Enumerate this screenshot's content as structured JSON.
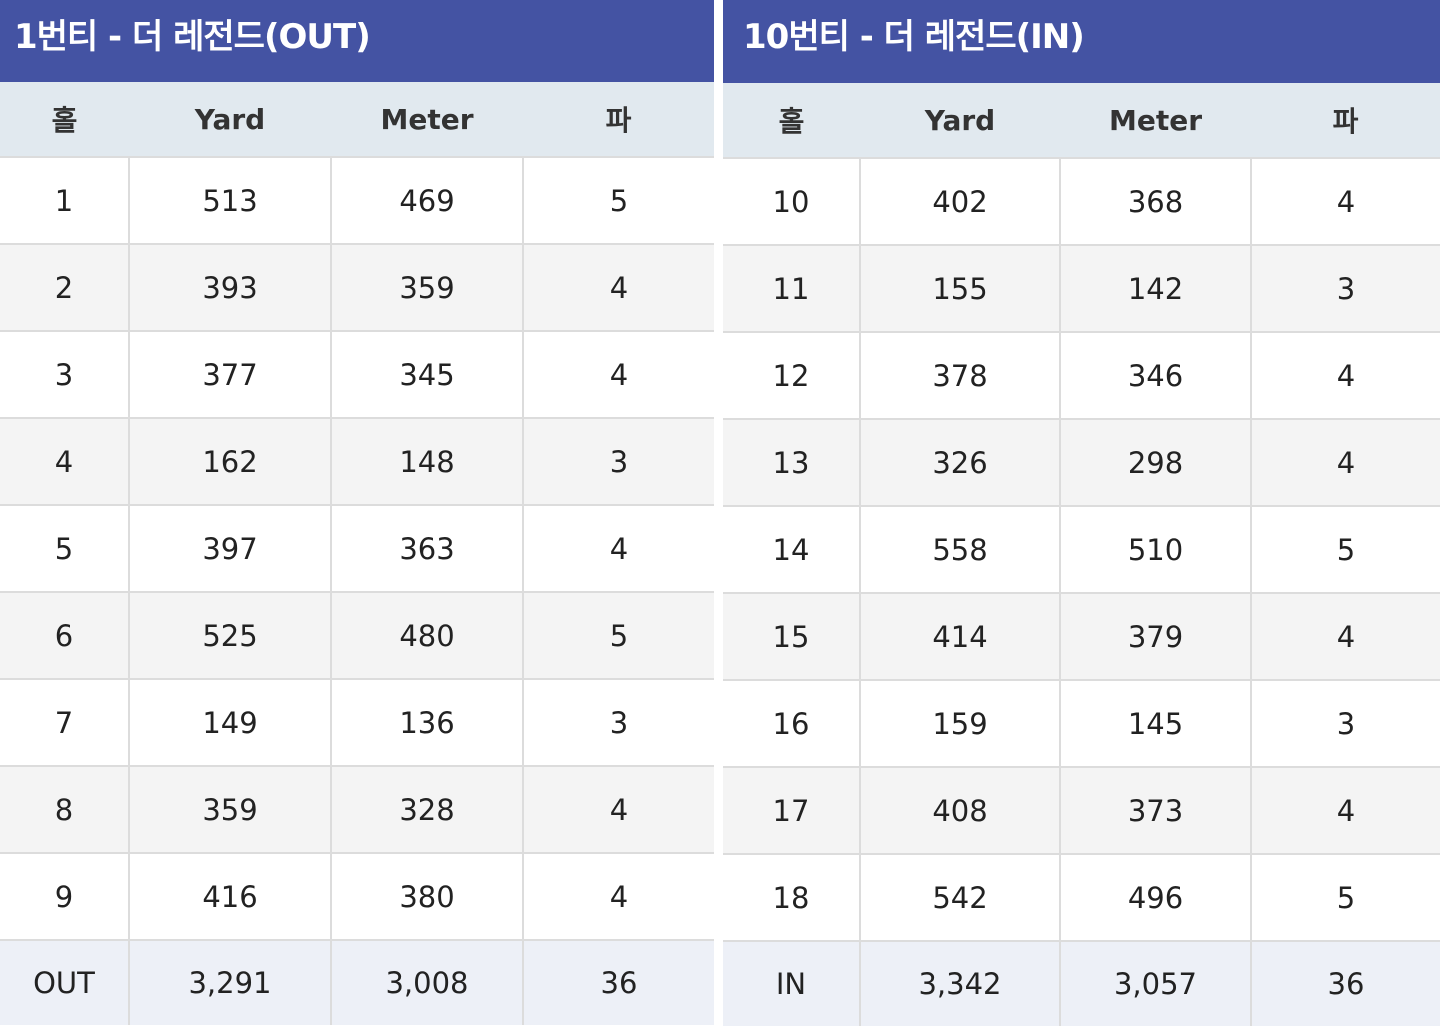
{
  "out_table": {
    "title": "1번티 - 더 레전드(OUT)",
    "headers": [
      "홀",
      "Yard",
      "Meter",
      "파"
    ],
    "rows": [
      [
        "1",
        "513",
        "469",
        "5"
      ],
      [
        "2",
        "393",
        "359",
        "4"
      ],
      [
        "3",
        "377",
        "345",
        "4"
      ],
      [
        "4",
        "162",
        "148",
        "3"
      ],
      [
        "5",
        "397",
        "363",
        "4"
      ],
      [
        "6",
        "525",
        "480",
        "5"
      ],
      [
        "7",
        "149",
        "136",
        "3"
      ],
      [
        "8",
        "359",
        "328",
        "4"
      ],
      [
        "9",
        "416",
        "380",
        "4"
      ]
    ],
    "total": [
      "OUT",
      "3,291",
      "3,008",
      "36"
    ]
  },
  "in_table": {
    "title": "10번티 - 더 레전드(IN)",
    "headers": [
      "홀",
      "Yard",
      "Meter",
      "파"
    ],
    "rows": [
      [
        "10",
        "402",
        "368",
        "4"
      ],
      [
        "11",
        "155",
        "142",
        "3"
      ],
      [
        "12",
        "378",
        "346",
        "4"
      ],
      [
        "13",
        "326",
        "298",
        "4"
      ],
      [
        "14",
        "558",
        "510",
        "5"
      ],
      [
        "15",
        "414",
        "379",
        "4"
      ],
      [
        "16",
        "159",
        "145",
        "3"
      ],
      [
        "17",
        "408",
        "373",
        "4"
      ],
      [
        "18",
        "542",
        "496",
        "5"
      ]
    ],
    "total": [
      "IN",
      "3,342",
      "3,057",
      "36"
    ]
  },
  "colors": {
    "title_bg": "#4453a3",
    "header_bg": "#e1e9ef",
    "row_alt_bg": "#f4f4f4",
    "total_bg": "#edf0f7"
  }
}
